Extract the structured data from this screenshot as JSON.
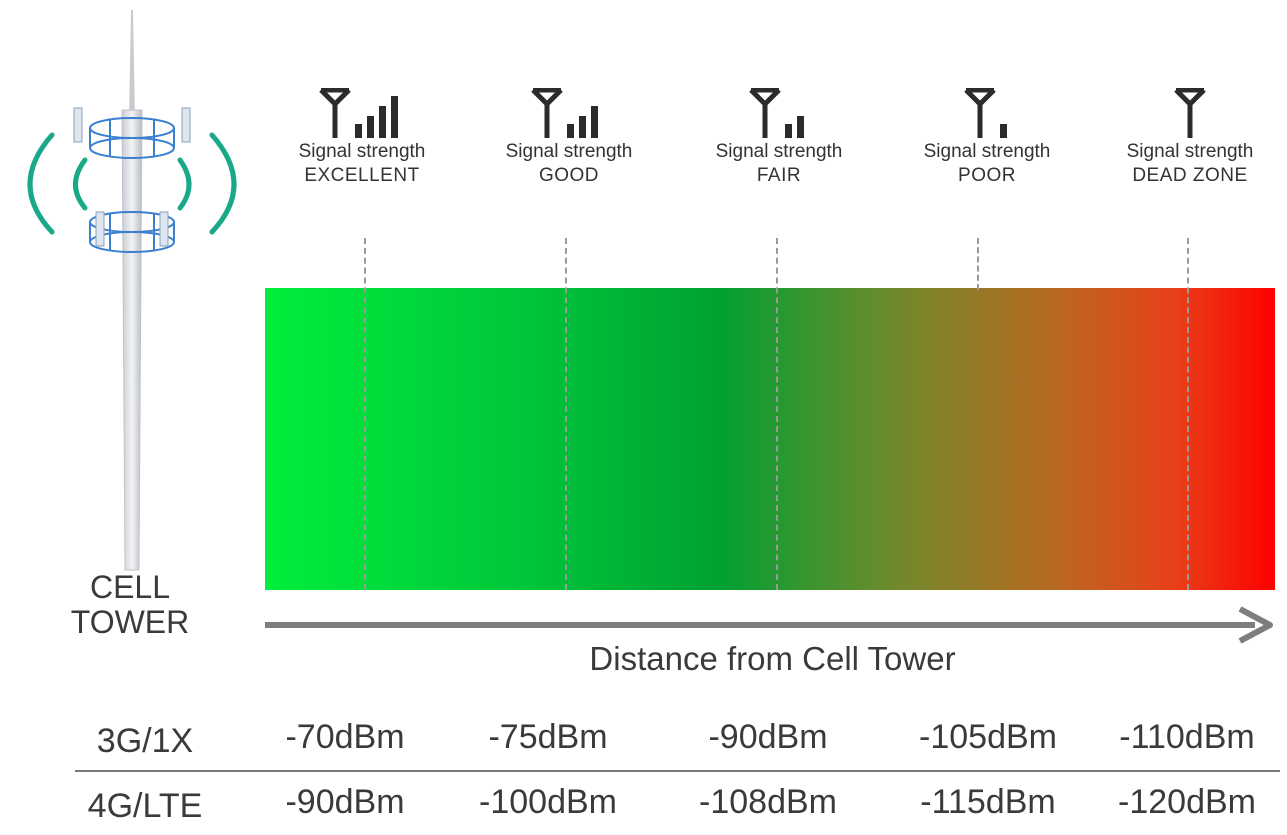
{
  "tower": {
    "label_line1": "CELL",
    "label_line2": "TOWER",
    "wave_color": "#1aa88a",
    "rack_color": "#3a7fd0"
  },
  "signal_levels": [
    {
      "caption": "Signal strength",
      "level": "EXCELLENT",
      "bars": 4,
      "icon": "signal-4-bars-icon"
    },
    {
      "caption": "Signal strength",
      "level": "GOOD",
      "bars": 3,
      "icon": "signal-3-bars-icon"
    },
    {
      "caption": "Signal strength",
      "level": "FAIR",
      "bars": 2,
      "icon": "signal-2-bars-icon"
    },
    {
      "caption": "Signal strength",
      "level": "POOR",
      "bars": 1,
      "icon": "signal-1-bar-icon"
    },
    {
      "caption": "Signal strength",
      "level": "DEAD ZONE",
      "bars": 0,
      "icon": "signal-0-bars-icon"
    }
  ],
  "gradient": {
    "start_color": "#00ee3c",
    "mid_color": "#00a132",
    "end_color": "#ff0000"
  },
  "axis": {
    "title": "Distance from Cell Tower"
  },
  "table": {
    "rows": [
      {
        "label": "3G/1X",
        "values": [
          "-70dBm",
          "-75dBm",
          "-90dBm",
          "-105dBm",
          "-110dBm"
        ]
      },
      {
        "label": "4G/LTE",
        "values": [
          "-90dBm",
          "-100dBm",
          "-108dBm",
          "-115dBm",
          "-120dBm"
        ]
      }
    ]
  }
}
